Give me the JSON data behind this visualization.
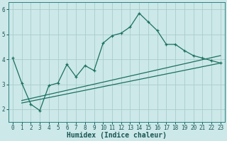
{
  "xlabel": "Humidex (Indice chaleur)",
  "xlim": [
    -0.5,
    23.5
  ],
  "ylim": [
    1.5,
    6.3
  ],
  "bg_color": "#cce8e8",
  "grid_color": "#aacccc",
  "line_color": "#1a7060",
  "series1_x": [
    0,
    1,
    2,
    3,
    4,
    5,
    6,
    7,
    8,
    9,
    10,
    11,
    12,
    13,
    14,
    15,
    16,
    17,
    18,
    19,
    20,
    21,
    22,
    23
  ],
  "series1_y": [
    4.05,
    3.05,
    2.2,
    1.95,
    2.95,
    3.05,
    3.8,
    3.3,
    3.75,
    3.55,
    4.65,
    4.95,
    5.05,
    5.3,
    5.85,
    5.5,
    5.15,
    4.6,
    4.6,
    4.35,
    4.15,
    4.05,
    3.95,
    3.85
  ],
  "series2_x": [
    1,
    23
  ],
  "series2_y": [
    2.25,
    3.85
  ],
  "series3_x": [
    1,
    23
  ],
  "series3_y": [
    2.35,
    4.15
  ],
  "xticks": [
    0,
    1,
    2,
    3,
    4,
    5,
    6,
    7,
    8,
    9,
    10,
    11,
    12,
    13,
    14,
    15,
    16,
    17,
    18,
    19,
    20,
    21,
    22,
    23
  ],
  "yticks": [
    2,
    3,
    4,
    5,
    6
  ],
  "tick_fontsize": 5.5,
  "xlabel_fontsize": 7
}
